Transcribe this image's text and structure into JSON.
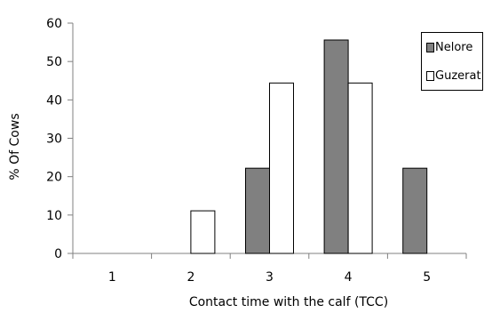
{
  "chart_data": {
    "type": "bar",
    "categories": [
      "1",
      "2",
      "3",
      "4",
      "5"
    ],
    "series": [
      {
        "name": "Nelore",
        "values": [
          0,
          0,
          22.2,
          55.6,
          22.2
        ],
        "color": "#808080"
      },
      {
        "name": "Guzerat",
        "values": [
          0,
          11.1,
          44.4,
          44.4,
          0
        ],
        "color": "#ffffff"
      }
    ],
    "xlabel": "Contact time with the calf (TCC)",
    "ylabel": "% Of Cows",
    "ylim": [
      0,
      60
    ],
    "yticks": [
      "0",
      "10",
      "20",
      "30",
      "40",
      "50",
      "60"
    ],
    "grid": false,
    "legend_position": "top-right"
  }
}
